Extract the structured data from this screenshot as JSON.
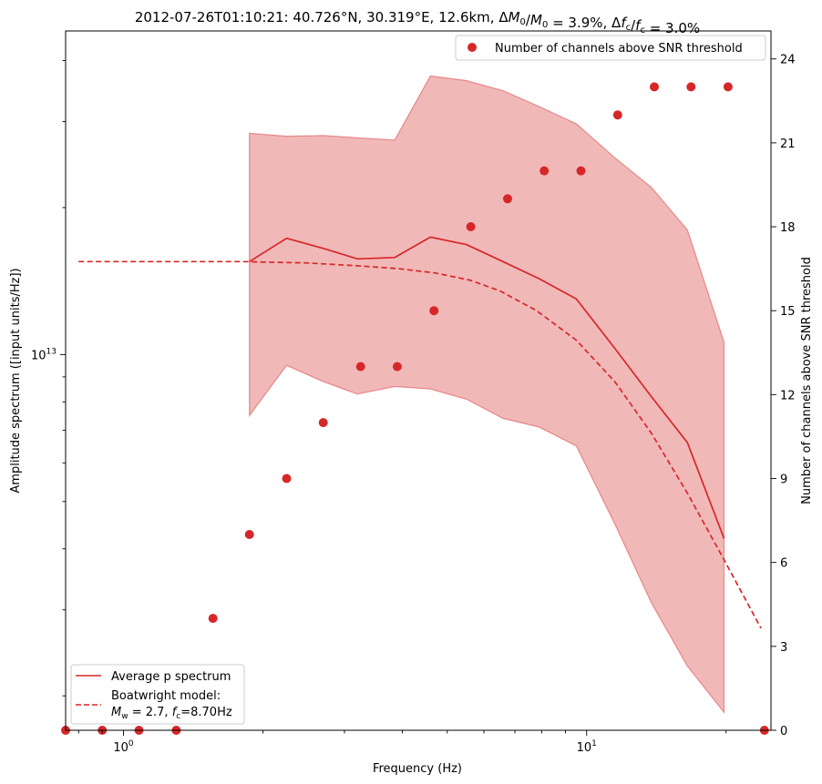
{
  "chart_data": {
    "type": "line",
    "title": "2012-07-26T01:10:21: 40.726°N, 30.319°E, 12.6km, ΔM₀/M₀ = 3.9%, Δf_c/f_c = 3.0%",
    "xlabel": "Frequency (Hz)",
    "ylabel_left": "Amplitude spectrum ([input units/Hz])",
    "ylabel_right": "Number of channels above SNR threshold",
    "x_scale": "log",
    "y_scale_left": "log",
    "xlim": [
      0.75,
      25
    ],
    "ylim_left": [
      1700000000000.0,
      46000000000000.0
    ],
    "ylim_right": [
      0,
      25
    ],
    "x_tick_labels": [
      "10^0",
      "10^1"
    ],
    "y_left_tick_labels": [
      "10^13"
    ],
    "y_right_ticks": [
      "0",
      "3",
      "6",
      "9",
      "12",
      "15",
      "18",
      "21",
      "24"
    ],
    "grid": false,
    "series": [
      {
        "name": "Average p spectrum",
        "style": "solid",
        "color": "#d62728",
        "x": [
          1.87,
          2.25,
          2.7,
          3.2,
          3.85,
          4.6,
          5.5,
          6.6,
          7.9,
          9.5,
          11.5,
          13.8,
          16.5,
          19.8
        ],
        "y": [
          15500000000000.0,
          17300000000000.0,
          16500000000000.0,
          15700000000000.0,
          15800000000000.0,
          17400000000000.0,
          16800000000000.0,
          15500000000000.0,
          14300000000000.0,
          13000000000000.0,
          10300000000000.0,
          8200000000000.0,
          6600000000000.0,
          4200000000000.0
        ]
      },
      {
        "name": "Boatwright model:",
        "name_line2": "M_w = 2.7, f_c=8.70Hz",
        "style": "dashed",
        "color": "#d62728",
        "x": [
          0.8,
          1.2,
          1.8,
          2.5,
          3.2,
          3.9,
          4.7,
          5.6,
          6.5,
          7.8,
          9.5,
          11.5,
          13.8,
          16.5,
          19.8,
          23.8
        ],
        "y": [
          15500000000000.0,
          15500000000000.0,
          15500000000000.0,
          15400000000000.0,
          15200000000000.0,
          15000000000000.0,
          14700000000000.0,
          14200000000000.0,
          13500000000000.0,
          12300000000000.0,
          10700000000000.0,
          8800000000000.0,
          6900000000000.0,
          5200000000000.0,
          3800000000000.0,
          2750000000000.0
        ]
      }
    ],
    "band": {
      "color": "#d62728",
      "x": [
        1.87,
        2.25,
        2.7,
        3.2,
        3.85,
        4.6,
        5.5,
        6.6,
        7.9,
        9.5,
        11.5,
        13.8,
        16.5,
        19.8
      ],
      "upper": [
        28400000000000.0,
        28000000000000.0,
        28100000000000.0,
        27800000000000.0,
        27500000000000.0,
        37200000000000.0,
        36400000000000.0,
        34700000000000.0,
        32200000000000.0,
        29700000000000.0,
        25300000000000.0,
        22000000000000.0,
        18000000000000.0,
        10600000000000.0
      ],
      "lower": [
        7500000000000.0,
        9500000000000.0,
        8800000000000.0,
        8300000000000.0,
        8600000000000.0,
        8500000000000.0,
        8100000000000.0,
        7400000000000.0,
        7100000000000.0,
        6500000000000.0,
        4500000000000.0,
        3100000000000.0,
        2300000000000.0,
        1850000000000.0
      ]
    },
    "scatter": {
      "name": "Number of channels above SNR threshold",
      "axis": "right",
      "color": "#d62728",
      "x": [
        0.75,
        0.9,
        1.08,
        1.3,
        1.56,
        1.87,
        2.25,
        2.7,
        3.25,
        3.9,
        4.68,
        5.62,
        6.75,
        8.1,
        9.72,
        11.67,
        14.0,
        16.8,
        20.2,
        24.2
      ],
      "y": [
        0,
        0,
        0,
        0,
        4,
        7,
        9,
        11,
        13,
        13,
        15,
        18,
        19,
        20,
        20,
        22,
        23,
        23,
        23,
        0
      ]
    },
    "legend_upper": "top-right",
    "legend_lower": "bottom-left"
  }
}
